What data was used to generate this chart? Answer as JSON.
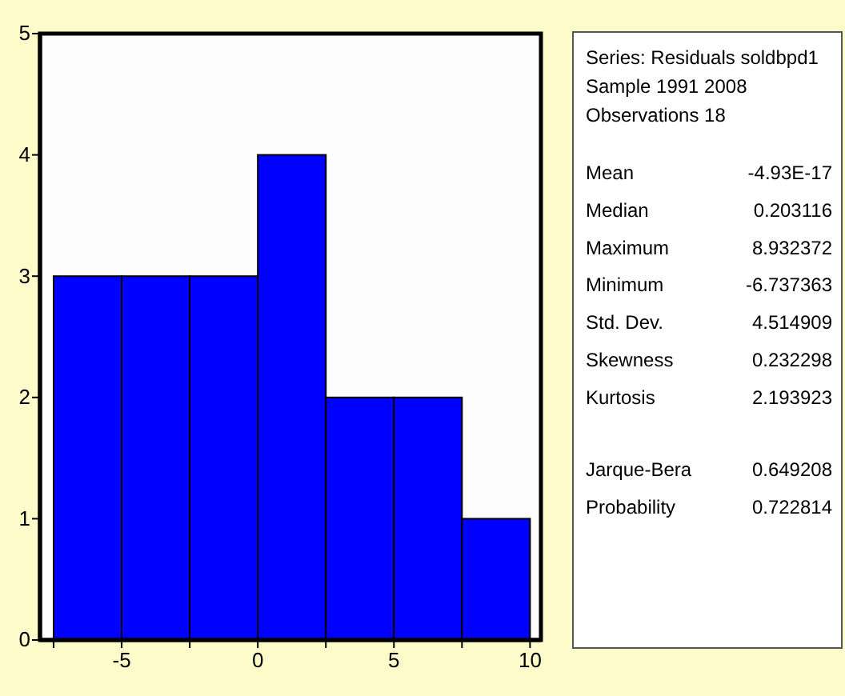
{
  "chart_data": [
    {
      "type": "histogram",
      "bins": [
        -7.5,
        -5,
        -2.5,
        0,
        2.5,
        5,
        7.5,
        10
      ],
      "values": [
        3,
        3,
        3,
        4,
        2,
        2,
        1
      ],
      "color": "#0000ff",
      "xlim": [
        -8,
        10.4
      ],
      "xticks": [
        {
          "value": -7.5,
          "label": null
        },
        -5,
        {
          "value": -2.5,
          "label": null
        },
        0,
        {
          "value": 2.5,
          "label": null
        },
        5,
        {
          "value": 7.5,
          "label": null
        },
        10
      ],
      "ylim": [
        0,
        5
      ],
      "yticks": [
        0,
        1,
        2,
        3,
        4,
        5
      ],
      "grid": false
    },
    {
      "type": "other",
      "annotations": [
        "Series: Residuals soldbpd1",
        "Sample 1991 2008",
        "Observations 18"
      ],
      "categories": [
        "Mean",
        "Median",
        "Maximum",
        "Minimum",
        "Std. Dev.",
        "Skewness",
        "Kurtosis",
        null,
        "Jarque-Bera",
        "Probability"
      ],
      "value_labels": [
        "-4.93E-17",
        "0.203116",
        "8.932372",
        "-6.737363",
        "4.514909",
        "0.232298",
        "2.193923",
        null,
        "0.649208",
        "0.722814"
      ]
    }
  ]
}
